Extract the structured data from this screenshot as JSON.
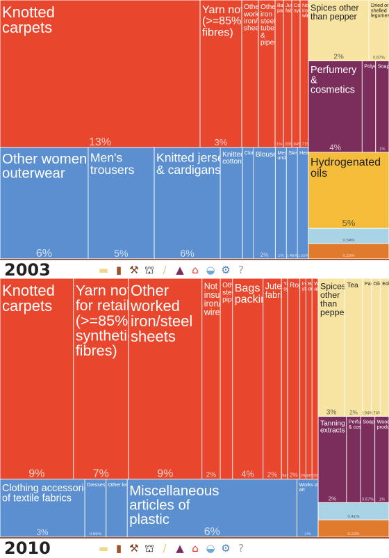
{
  "legend_icons": [
    {
      "name": "animal-products-icon",
      "glyph": "▬",
      "color": "#f0d78a"
    },
    {
      "name": "beverages-icon",
      "glyph": "▮",
      "color": "#a0522d"
    },
    {
      "name": "mining-tools-icon",
      "glyph": "⚒",
      "color": "#7a3b1e"
    },
    {
      "name": "oil-derrick-icon",
      "glyph": "⛫",
      "color": "#222222"
    },
    {
      "name": "textiles-icon",
      "glyph": "∕",
      "color": "#e9c46a"
    },
    {
      "name": "chemicals-flask-icon",
      "glyph": "▲",
      "color": "#7b2d5b"
    },
    {
      "name": "house-icon",
      "glyph": "⌂",
      "color": "#e0322a"
    },
    {
      "name": "car-icon",
      "glyph": "◒",
      "color": "#6fa8dc"
    },
    {
      "name": "machinery-gears-icon",
      "glyph": "⚙",
      "color": "#4a7fb5"
    },
    {
      "name": "unknown-question-icon",
      "glyph": "?",
      "color": "#999999"
    }
  ],
  "chart_data": [
    {
      "type": "treemap",
      "year": "2003",
      "items": [
        {
          "label": "Knotted\ncarpets",
          "pct": "13%",
          "color": "#e8472d",
          "size": 24
        },
        {
          "label": "Yarn not for retail\n(>=85% synthetic\nfibres)",
          "pct": "3%",
          "color": "#e8472d",
          "size": 5
        },
        {
          "label": "Other\nworked\niron/steel\nsheets",
          "pct": "",
          "color": "#e8472d",
          "size": 2
        },
        {
          "label": "Other\niron or\nsteel\ntubes\n&\npipes",
          "pct": "",
          "color": "#e8472d",
          "size": 2
        },
        {
          "label": "Bags & sacks for\npacking",
          "pct": "1%",
          "color": "#e8472d",
          "size": 1
        },
        {
          "label": "Jute woven\nfabrics",
          "pct": "0.93%",
          "color": "#e8472d",
          "size": 1
        },
        {
          "label": "Continuous\nsynthetic...",
          "pct": "0.84%",
          "color": "#e8472d",
          "size": 1
        },
        {
          "label": "Not insulated\niron/steel\nwire",
          "pct": "0.71%",
          "color": "#e8472d",
          "size": 1
        },
        {
          "label": "Other women\nouterwear",
          "pct": "6%",
          "color": "#5b8fcf",
          "size": 8
        },
        {
          "label": "Men's\ntrousers",
          "pct": "5%",
          "color": "#5b8fcf",
          "size": 6
        },
        {
          "label": "Knitted jerseys, pullovers\n& cardigans",
          "pct": "6%",
          "color": "#5b8fcf",
          "size": 6
        },
        {
          "label": "Knitted undergarments of\ncotton",
          "pct": "",
          "color": "#5b8fcf",
          "size": 2
        },
        {
          "label": "Clothing accessories of textile fabrics",
          "pct": "",
          "color": "#5b8fcf",
          "size": 1
        },
        {
          "label": "Blouses",
          "pct": "2%",
          "color": "#5b8fcf",
          "size": 2
        },
        {
          "label": "Men's\nundershirt",
          "pct": "1%",
          "color": "#5b8fcf",
          "size": 1
        },
        {
          "label": "Skirts",
          "pct": "0.46%",
          "color": "#5b8fcf",
          "size": 1
        },
        {
          "label": "Headgear",
          "pct": "0.55%",
          "color": "#5b8fcf",
          "size": 1
        },
        {
          "label": "Spices other\nthan pepper",
          "pct": "2%",
          "color": "#f7e3a2",
          "size": 3
        },
        {
          "label": "Dried or\nshelled\nlegumes",
          "pct": "0.67%",
          "color": "#f7e3a2",
          "size": 1
        },
        {
          "label": "Perfumery\n&\ncosmetics",
          "pct": "4%",
          "color": "#7b2d5b",
          "size": 4
        },
        {
          "label": "Polyethylene",
          "pct": "",
          "color": "#7b2d5b",
          "size": 1
        },
        {
          "label": "Soaps",
          "pct": "1%",
          "color": "#7b2d5b",
          "size": 1
        },
        {
          "label": "Hydrogenated\noils",
          "pct": "5%",
          "color": "#f5bd3a",
          "size": 5
        },
        {
          "label": "",
          "pct": "0.54%",
          "color": "#a8d4e6",
          "size": 1
        },
        {
          "label": "",
          "pct": "0.25%",
          "color": "#e07b2d",
          "size": 1
        }
      ]
    },
    {
      "type": "treemap",
      "year": "2010",
      "items": [
        {
          "label": "Knotted\ncarpets",
          "pct": "9%",
          "color": "#e8472d",
          "size": 12
        },
        {
          "label": "Yarn not\nfor retail\n(>=85%\nsynthetic\nfibres)",
          "pct": "7%",
          "color": "#e8472d",
          "size": 9
        },
        {
          "label": "Other\nworked\niron/steel\nsheets",
          "pct": "9%",
          "color": "#e8472d",
          "size": 12
        },
        {
          "label": "Not\ninsulated\niron/steel\nwire",
          "pct": "2%",
          "color": "#e8472d",
          "size": 3
        },
        {
          "label": "Other iron or\nsteel tubes &\npipes",
          "pct": "",
          "color": "#e8472d",
          "size": 2
        },
        {
          "label": "Bags & sacks for\npacking",
          "pct": "4%",
          "color": "#e8472d",
          "size": 5
        },
        {
          "label": "Jute woven\nfabrics",
          "pct": "2%",
          "color": "#e8472d",
          "size": 3
        },
        {
          "label": "Yarn (<85%\nsynthetic fibres)",
          "pct": "0.94%",
          "color": "#e8472d",
          "size": 1
        },
        {
          "label": "Ropes & cables",
          "pct": "2%",
          "color": "#e8472d",
          "size": 2
        },
        {
          "label": "Iron/steel\nstructures",
          "pct": "1%",
          "color": "#e8472d",
          "size": 1
        },
        {
          "label": "Base metal\ndomestic...",
          "pct": "0.86%",
          "color": "#e8472d",
          "size": 1
        },
        {
          "label": "Worked copper & copper\nalloys",
          "pct": "0.55%",
          "color": "#e8472d",
          "size": 1
        },
        {
          "label": "Clothing accessories\nof textile fabrics",
          "pct": "3%",
          "color": "#5b8fcf",
          "size": 4
        },
        {
          "label": "Dresses",
          "pct": "0.66%",
          "color": "#5b8fcf",
          "size": 1
        },
        {
          "label": "Other knitted outerwear",
          "pct": "",
          "color": "#5b8fcf",
          "size": 1
        },
        {
          "label": "Miscellaneous\narticles of\nplastic",
          "pct": "6%",
          "color": "#5b8fcf",
          "size": 8
        },
        {
          "label": "Works of\nart",
          "pct": "1%",
          "color": "#5b8fcf",
          "size": 1
        },
        {
          "label": "Spices\nother\nthan\npepper",
          "pct": "3%",
          "color": "#f7e3a2",
          "size": 3
        },
        {
          "label": "Tea",
          "pct": "2%",
          "color": "#f7e3a2",
          "size": 2
        },
        {
          "label": "Pasta",
          "pct": "0.94%",
          "color": "#f7e3a2",
          "size": 1
        },
        {
          "label": "Oilcake",
          "pct": "0.74%",
          "color": "#f7e3a2",
          "size": 1
        },
        {
          "label": "Edible nuts",
          "pct": "",
          "color": "#f7e3a2",
          "size": 1
        },
        {
          "label": "Tanning\nextracts",
          "pct": "2%",
          "color": "#7b2d5b",
          "size": 2
        },
        {
          "label": "Perfumery\n& cosmetics",
          "pct": "",
          "color": "#7b2d5b",
          "size": 1
        },
        {
          "label": "Soaps",
          "pct": "0.67%",
          "color": "#7b2d5b",
          "size": 1
        },
        {
          "label": "Woods & resin chemical\nproducts",
          "pct": "1%",
          "color": "#7b2d5b",
          "size": 1
        },
        {
          "label": "",
          "pct": "0.41%",
          "color": "#a8d4e6",
          "size": 1
        },
        {
          "label": "",
          "pct": "0.22%",
          "color": "#e07b2d",
          "size": 1
        }
      ]
    }
  ]
}
